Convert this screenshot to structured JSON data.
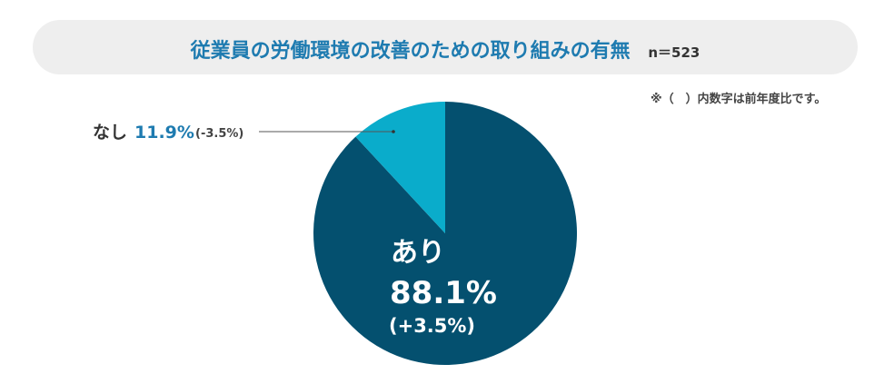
{
  "header": {
    "title": "従業員の労働環境の改善のための取り組みの有無",
    "sample_size": "n＝523"
  },
  "note": "※（　）内数字は前年度比です。",
  "colors": {
    "yes": "#04506f",
    "no": "#0aaccb",
    "title": "#1e7bb0",
    "title_bg": "#eeeeee"
  },
  "chart_data": {
    "type": "pie",
    "title": "従業員の労働環境の改善のための取り組みの有無",
    "slices": [
      {
        "label": "あり",
        "value": 88.1,
        "value_text": "88.1%",
        "change_text": "(+3.5%)"
      },
      {
        "label": "なし",
        "value": 11.9,
        "value_text": "11.9%",
        "change_text": "(-3.5%)"
      }
    ]
  }
}
